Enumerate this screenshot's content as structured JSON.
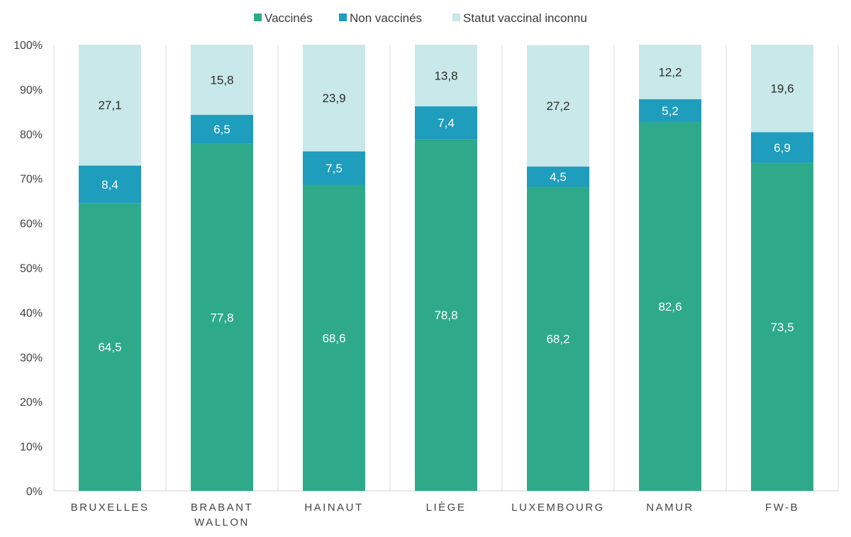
{
  "chart_data": {
    "type": "bar",
    "stacked": true,
    "percent_stacked": true,
    "categories": [
      [
        "BRUXELLES"
      ],
      [
        "BRABANT",
        "WALLON"
      ],
      [
        "HAINAUT"
      ],
      [
        "LIÈGE"
      ],
      [
        "LUXEMBOURG"
      ],
      [
        "NAMUR"
      ],
      [
        "FW-B"
      ]
    ],
    "series": [
      {
        "name": "Vaccinés",
        "color": "#2eaa8a",
        "label_color": "#ffffff",
        "values": [
          64.5,
          77.8,
          68.6,
          78.8,
          68.2,
          82.6,
          73.5
        ],
        "labels": [
          "64,5",
          "77,8",
          "68,6",
          "78,8",
          "68,2",
          "82,6",
          "73,5"
        ]
      },
      {
        "name": "Non vaccinés",
        "color": "#1e9dbd",
        "label_color": "#ffffff",
        "values": [
          8.4,
          6.5,
          7.5,
          7.4,
          4.5,
          5.2,
          6.9
        ],
        "labels": [
          "8,4",
          "6,5",
          "7,5",
          "7,4",
          "4,5",
          "5,2",
          "6,9"
        ]
      },
      {
        "name": "Statut vaccinal inconnu",
        "color": "#c8e8e9",
        "label_color": "#2b2b2b",
        "values": [
          27.1,
          15.8,
          23.9,
          13.8,
          27.2,
          12.2,
          19.6
        ],
        "labels": [
          "27,1",
          "15,8",
          "23,9",
          "13,8",
          "27,2",
          "12,2",
          "19,6"
        ]
      }
    ],
    "yticks": [
      "0%",
      "10%",
      "20%",
      "30%",
      "40%",
      "50%",
      "60%",
      "70%",
      "80%",
      "90%",
      "100%"
    ],
    "ylim": [
      0,
      100
    ],
    "legend_position": "top-center",
    "grid": false,
    "category_separators": true
  }
}
